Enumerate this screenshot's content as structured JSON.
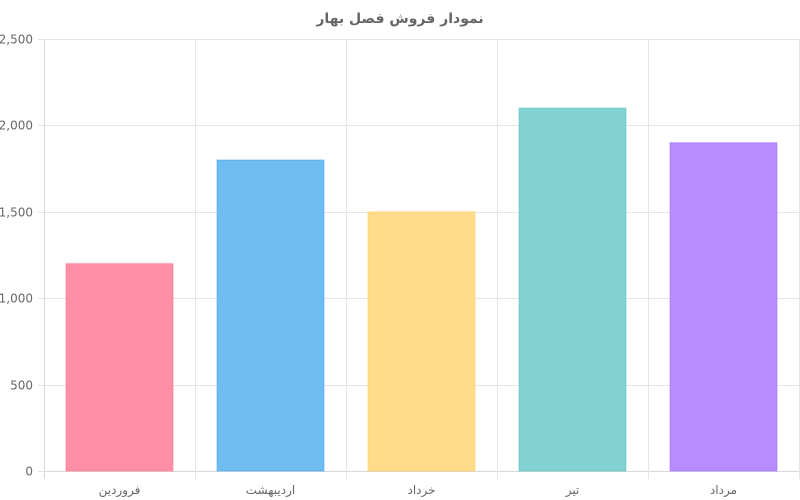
{
  "chart_data": {
    "type": "bar",
    "title": "نمودار فروش فصل بهار",
    "categories": [
      "فروردین",
      "اردیبهشت",
      "خرداد",
      "تیر",
      "مرداد"
    ],
    "values": [
      1200,
      1800,
      1500,
      2100,
      1900
    ],
    "ylim": [
      0,
      2500
    ],
    "y_ticks": [
      "0",
      "500",
      "1,000",
      "1,500",
      "2,000",
      "2,500"
    ],
    "y_tick_values": [
      0,
      500,
      1000,
      1500,
      2000,
      2500
    ],
    "grid": true,
    "legend": "none",
    "colors": [
      "#ff8fa7",
      "#6ebcf0",
      "#ffdc8c",
      "#82d2d3",
      "#b88cff"
    ],
    "border_colors": [
      "#ff6384",
      "#36a2eb",
      "#ffce56",
      "#4bc0c0",
      "#9966ff"
    ]
  }
}
